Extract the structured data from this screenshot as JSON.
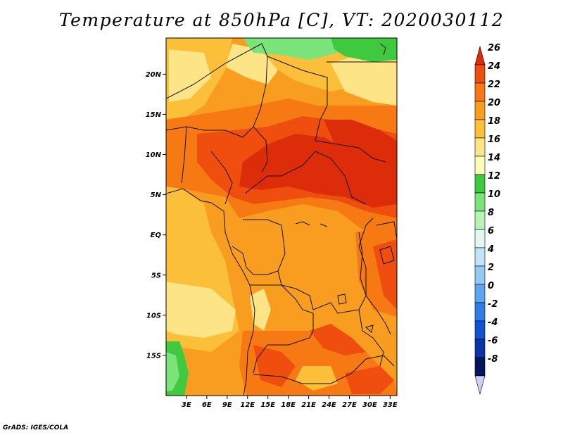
{
  "title": "Temperature at 850hPa [C], VT: 2020030112",
  "credit": "GrADS: IGES/COLA",
  "map": {
    "lon_range": [
      0,
      34
    ],
    "lat_range": [
      -20,
      24.5
    ],
    "lat_ticks": [
      {
        "value": 20,
        "label": "20N"
      },
      {
        "value": 15,
        "label": "15N"
      },
      {
        "value": 10,
        "label": "10N"
      },
      {
        "value": 5,
        "label": "5N"
      },
      {
        "value": 0,
        "label": "EQ"
      },
      {
        "value": -5,
        "label": "5S"
      },
      {
        "value": -10,
        "label": "10S"
      },
      {
        "value": -15,
        "label": "15S"
      }
    ],
    "lon_ticks": [
      {
        "value": 3,
        "label": "3E"
      },
      {
        "value": 6,
        "label": "6E"
      },
      {
        "value": 9,
        "label": "9E"
      },
      {
        "value": 12,
        "label": "12E"
      },
      {
        "value": 15,
        "label": "15E"
      },
      {
        "value": 18,
        "label": "18E"
      },
      {
        "value": 21,
        "label": "21E"
      },
      {
        "value": 24,
        "label": "24E"
      },
      {
        "value": 27,
        "label": "27E"
      },
      {
        "value": 30,
        "label": "30E"
      },
      {
        "value": 33,
        "label": "33E"
      }
    ]
  },
  "colorbar": {
    "levels": [
      "26",
      "24",
      "22",
      "20",
      "18",
      "16",
      "14",
      "12",
      "10",
      "8",
      "6",
      "4",
      "2",
      "0",
      "-2",
      "-4",
      "-6",
      "-8"
    ],
    "colors_top_to_bottom": [
      "#dc2c0a",
      "#f04e0f",
      "#f67914",
      "#f99d20",
      "#fbbf39",
      "#fde486",
      "#fffcb9",
      "#3fc93f",
      "#7ae37a",
      "#b6f3b6",
      "#e3f8ee",
      "#c2e4f8",
      "#93c9f4",
      "#5ba6ef",
      "#2e7ee6",
      "#1253d4",
      "#0a34a8",
      "#06145e",
      "#d0cef7"
    ]
  },
  "legend_colors": {
    "c26": "#dc2c0a",
    "c24": "#f04e0f",
    "c22": "#f67914",
    "c20": "#f99d20",
    "c18": "#fbbf39",
    "c16": "#fde486",
    "c14": "#fffcb9",
    "c12": "#3fc93f",
    "c10": "#7ae37a"
  }
}
